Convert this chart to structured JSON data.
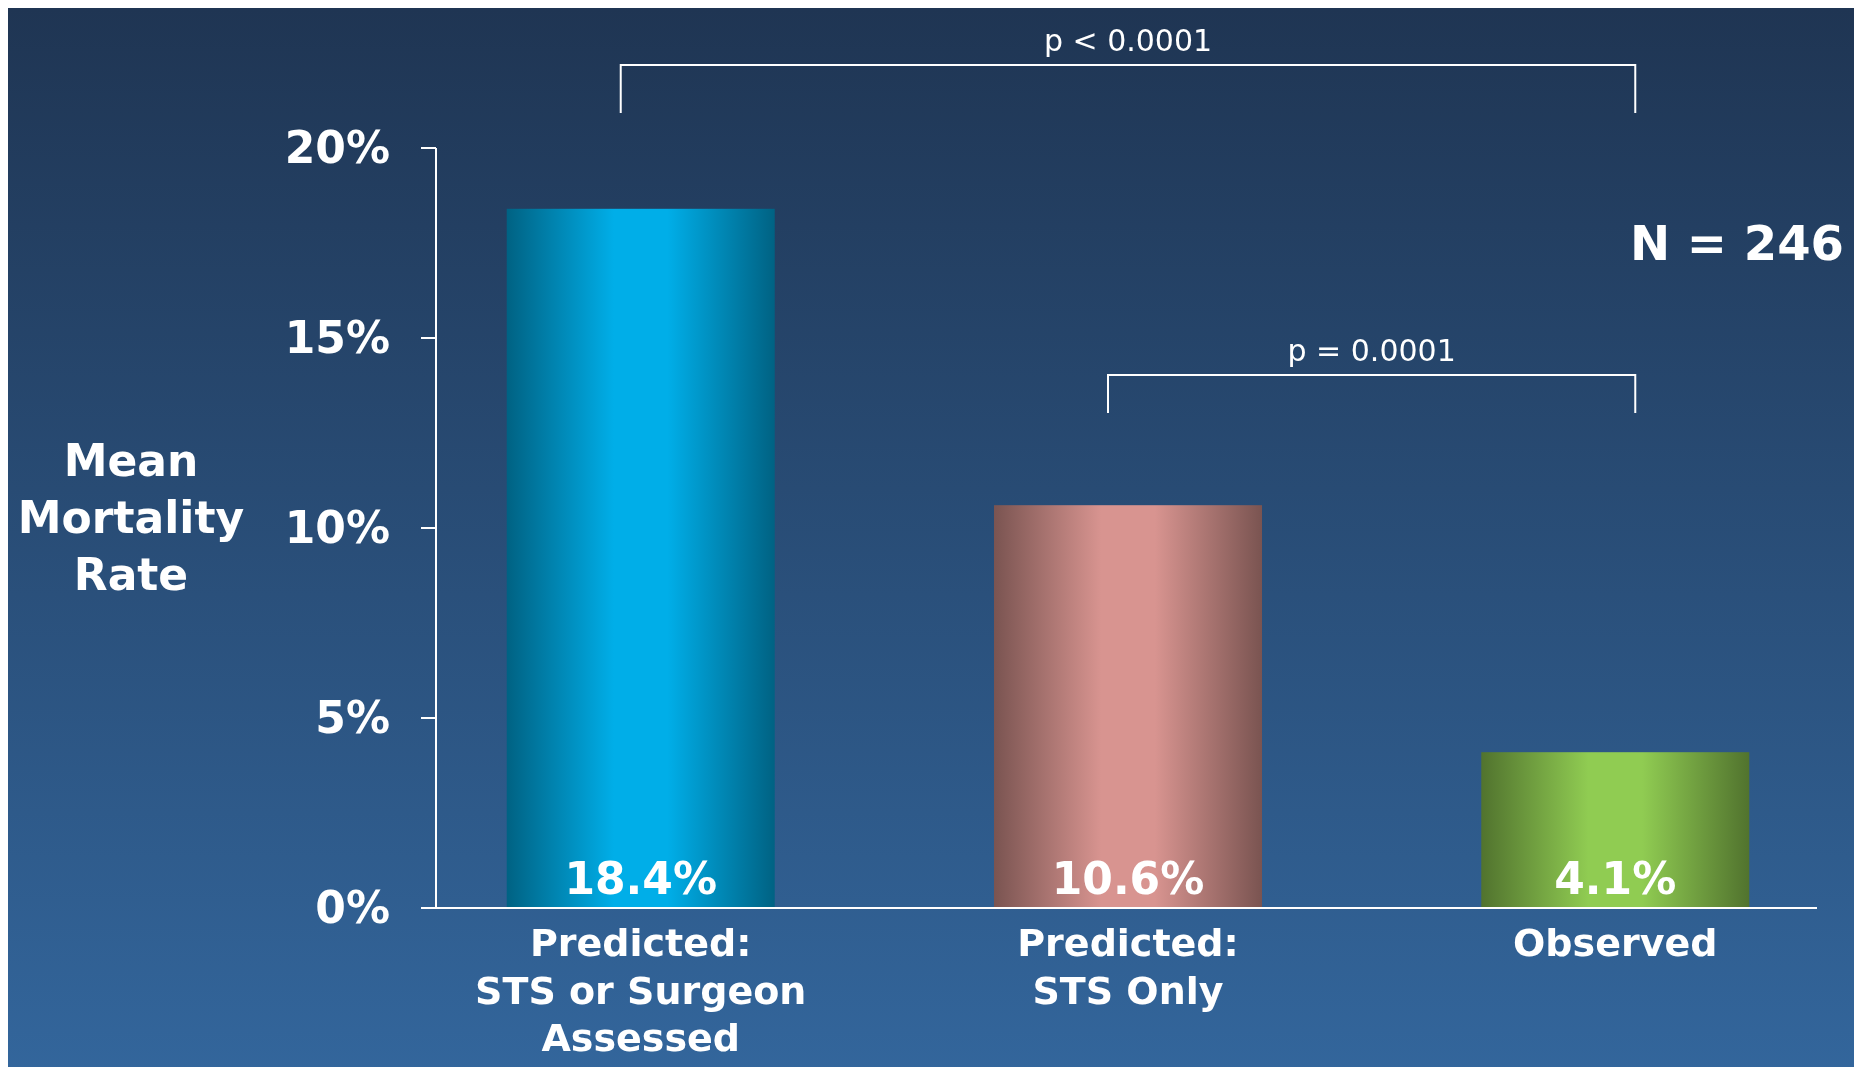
{
  "chart_data": {
    "type": "bar",
    "ylabel": "Mean\nMortality\nRate",
    "categories": [
      "Predicted:\nSTS or Surgeon\nAssessed",
      "Predicted:\nSTS Only",
      "Observed"
    ],
    "values": [
      18.4,
      10.6,
      4.1
    ],
    "colors": [
      "#00aee8",
      "#d89490",
      "#90cc52"
    ],
    "value_labels": [
      "18.4%",
      "10.6%",
      "4.1%"
    ],
    "ylim": [
      0,
      20
    ],
    "yticks": [
      {
        "value": 0,
        "label": "0%"
      },
      {
        "value": 5,
        "label": "5%"
      },
      {
        "value": 10,
        "label": "10%"
      },
      {
        "value": 15,
        "label": "15%"
      },
      {
        "value": 20,
        "label": "20%"
      }
    ],
    "grid": false,
    "annotations": [
      "p < 0.0001",
      "p = 0.0001",
      "N = 246"
    ]
  }
}
